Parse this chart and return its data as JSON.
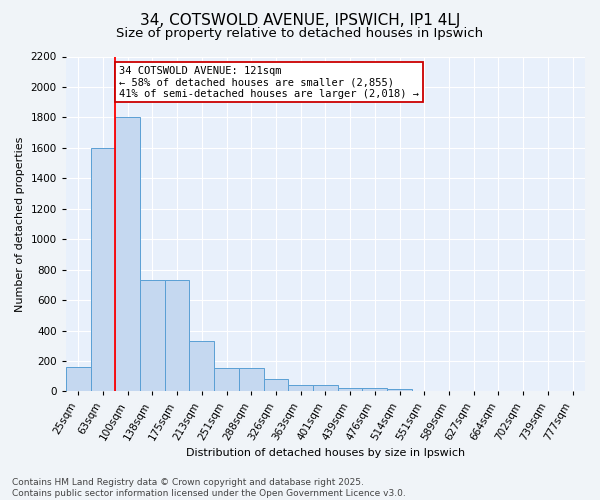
{
  "title": "34, COTSWOLD AVENUE, IPSWICH, IP1 4LJ",
  "subtitle": "Size of property relative to detached houses in Ipswich",
  "xlabel": "Distribution of detached houses by size in Ipswich",
  "ylabel": "Number of detached properties",
  "categories": [
    "25sqm",
    "63sqm",
    "100sqm",
    "138sqm",
    "175sqm",
    "213sqm",
    "251sqm",
    "288sqm",
    "326sqm",
    "363sqm",
    "401sqm",
    "439sqm",
    "476sqm",
    "514sqm",
    "551sqm",
    "589sqm",
    "627sqm",
    "664sqm",
    "702sqm",
    "739sqm",
    "777sqm"
  ],
  "bar_heights": [
    160,
    1600,
    1800,
    730,
    730,
    330,
    155,
    155,
    80,
    45,
    45,
    25,
    20,
    15,
    5,
    0,
    0,
    0,
    0,
    0,
    0
  ],
  "bar_color": "#c5d8f0",
  "bar_edge_color": "#5a9fd4",
  "background_color": "#e8f0fb",
  "grid_color": "#ffffff",
  "red_line_index": 2,
  "annotation_line1": "34 COTSWOLD AVENUE: 121sqm",
  "annotation_line2": "← 58% of detached houses are smaller (2,855)",
  "annotation_line3": "41% of semi-detached houses are larger (2,018) →",
  "annotation_box_color": "#ffffff",
  "annotation_box_edge": "#cc0000",
  "footer_line1": "Contains HM Land Registry data © Crown copyright and database right 2025.",
  "footer_line2": "Contains public sector information licensed under the Open Government Licence v3.0.",
  "ylim": [
    0,
    2200
  ],
  "yticks": [
    0,
    200,
    400,
    600,
    800,
    1000,
    1200,
    1400,
    1600,
    1800,
    2000,
    2200
  ],
  "title_fontsize": 11,
  "subtitle_fontsize": 9.5,
  "axis_label_fontsize": 8,
  "tick_fontsize": 7.5,
  "annotation_fontsize": 7.5,
  "footer_fontsize": 6.5
}
